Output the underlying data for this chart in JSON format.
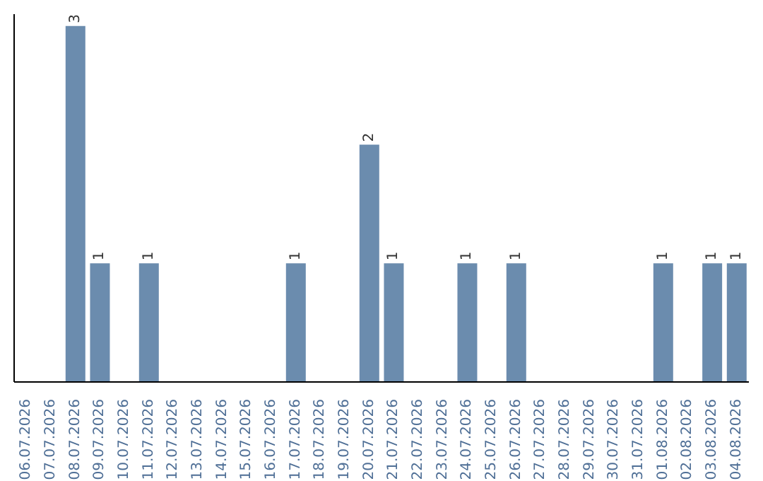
{
  "chart_data": {
    "type": "bar",
    "categories": [
      "06.07.2026",
      "07.07.2026",
      "08.07.2026",
      "09.07.2026",
      "10.07.2026",
      "11.07.2026",
      "12.07.2026",
      "13.07.2026",
      "14.07.2026",
      "15.07.2026",
      "16.07.2026",
      "17.07.2026",
      "18.07.2026",
      "19.07.2026",
      "20.07.2026",
      "21.07.2026",
      "22.07.2026",
      "23.07.2026",
      "24.07.2026",
      "25.07.2026",
      "26.07.2026",
      "27.07.2026",
      "28.07.2026",
      "29.07.2026",
      "30.07.2026",
      "31.07.2026",
      "01.08.2026",
      "02.08.2026",
      "03.08.2026",
      "04.08.2026"
    ],
    "values": [
      0,
      0,
      3,
      1,
      0,
      1,
      0,
      0,
      0,
      0,
      0,
      1,
      0,
      0,
      2,
      1,
      0,
      0,
      1,
      0,
      1,
      0,
      0,
      0,
      0,
      0,
      1,
      0,
      1,
      1
    ],
    "value_labels": [
      null,
      null,
      "3",
      "1",
      null,
      "1",
      null,
      null,
      null,
      null,
      null,
      "1",
      null,
      null,
      "2",
      "1",
      null,
      null,
      "1",
      null,
      "1",
      null,
      null,
      null,
      null,
      null,
      "1",
      null,
      "1",
      "1"
    ],
    "color": "#6b8cae",
    "ylim": [
      0,
      3.1
    ],
    "grid": false,
    "legend": false
  }
}
